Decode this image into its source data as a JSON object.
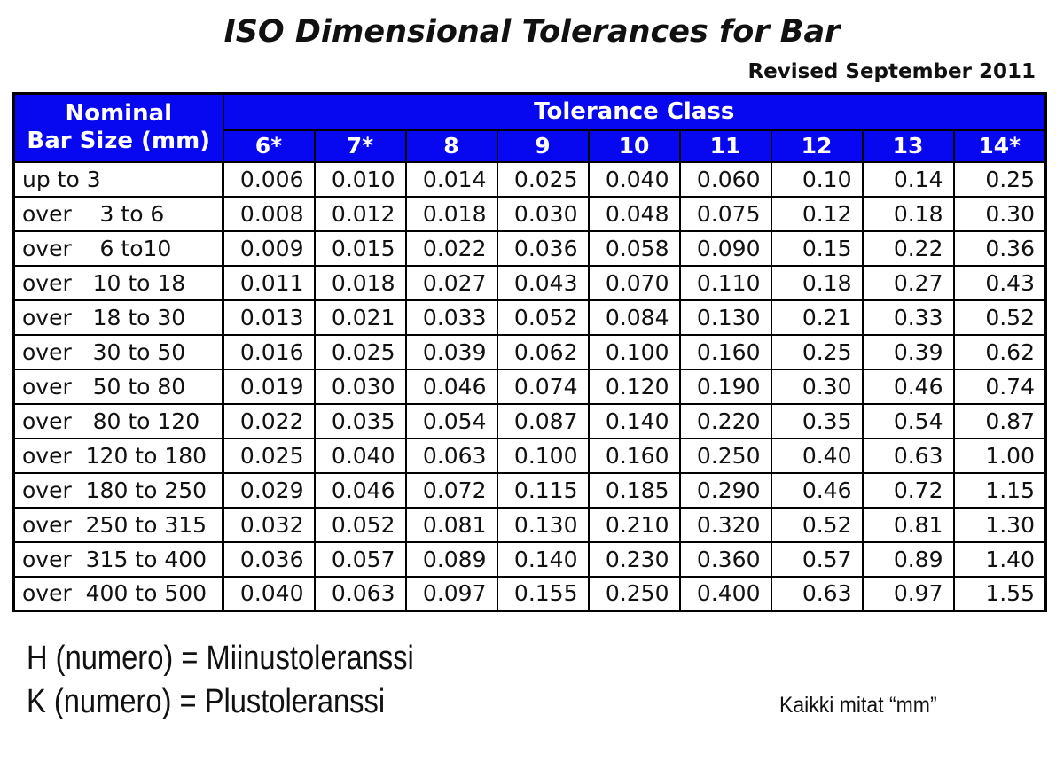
{
  "page": {
    "title": "ISO Dimensional Tolerances for Bar",
    "revision_note": "Revised September 2011"
  },
  "table": {
    "corner_header_line1": "Nominal",
    "corner_header_line2": "Bar Size (mm)",
    "group_header": "Tolerance Class",
    "columns": [
      "6*",
      "7*",
      "8",
      "9",
      "10",
      "11",
      "12",
      "13",
      "14*"
    ],
    "rows": [
      {
        "label": "up to 3",
        "values": [
          "0.006",
          "0.010",
          "0.014",
          "0.025",
          "0.040",
          "0.060",
          "0.10",
          "0.14",
          "0.25"
        ]
      },
      {
        "label": "over    3 to 6",
        "values": [
          "0.008",
          "0.012",
          "0.018",
          "0.030",
          "0.048",
          "0.075",
          "0.12",
          "0.18",
          "0.30"
        ]
      },
      {
        "label": "over    6 to10",
        "values": [
          "0.009",
          "0.015",
          "0.022",
          "0.036",
          "0.058",
          "0.090",
          "0.15",
          "0.22",
          "0.36"
        ]
      },
      {
        "label": "over   10 to 18",
        "values": [
          "0.011",
          "0.018",
          "0.027",
          "0.043",
          "0.070",
          "0.110",
          "0.18",
          "0.27",
          "0.43"
        ]
      },
      {
        "label": "over   18 to 30",
        "values": [
          "0.013",
          "0.021",
          "0.033",
          "0.052",
          "0.084",
          "0.130",
          "0.21",
          "0.33",
          "0.52"
        ]
      },
      {
        "label": "over   30 to 50",
        "values": [
          "0.016",
          "0.025",
          "0.039",
          "0.062",
          "0.100",
          "0.160",
          "0.25",
          "0.39",
          "0.62"
        ]
      },
      {
        "label": "over   50 to 80",
        "values": [
          "0.019",
          "0.030",
          "0.046",
          "0.074",
          "0.120",
          "0.190",
          "0.30",
          "0.46",
          "0.74"
        ]
      },
      {
        "label": "over   80 to 120",
        "values": [
          "0.022",
          "0.035",
          "0.054",
          "0.087",
          "0.140",
          "0.220",
          "0.35",
          "0.54",
          "0.87"
        ]
      },
      {
        "label": "over  120 to 180",
        "values": [
          "0.025",
          "0.040",
          "0.063",
          "0.100",
          "0.160",
          "0.250",
          "0.40",
          "0.63",
          "1.00"
        ]
      },
      {
        "label": "over  180 to 250",
        "values": [
          "0.029",
          "0.046",
          "0.072",
          "0.115",
          "0.185",
          "0.290",
          "0.46",
          "0.72",
          "1.15"
        ]
      },
      {
        "label": "over  250 to 315",
        "values": [
          "0.032",
          "0.052",
          "0.081",
          "0.130",
          "0.210",
          "0.320",
          "0.52",
          "0.81",
          "1.30"
        ]
      },
      {
        "label": "over  315 to 400",
        "values": [
          "0.036",
          "0.057",
          "0.089",
          "0.140",
          "0.230",
          "0.360",
          "0.57",
          "0.89",
          "1.40"
        ]
      },
      {
        "label": "over  400 to 500",
        "values": [
          "0.040",
          "0.063",
          "0.097",
          "0.155",
          "0.250",
          "0.400",
          "0.63",
          "0.97",
          "1.55"
        ]
      }
    ]
  },
  "legend": {
    "line1": "H (numero) = Miinustoleranssi",
    "line2": "K (numero) = Plustoleranssi",
    "units_note": "Kaikki mitat “mm”"
  },
  "colors": {
    "header_bg": "#0707f0",
    "header_text": "#ffffff",
    "border": "#000000"
  }
}
